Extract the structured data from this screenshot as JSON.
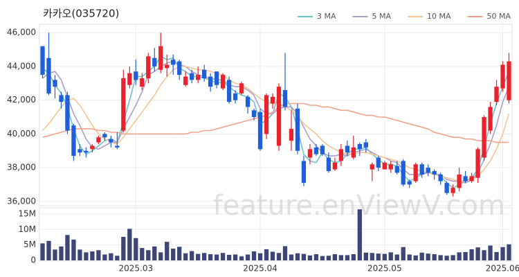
{
  "chart_data": [
    {
      "type": "candlestick",
      "title": "카카오(035720)",
      "watermark": "feature.enViewV.com",
      "categories": [
        null,
        null,
        null,
        null,
        null,
        null,
        null,
        null,
        null,
        null,
        null,
        null,
        null,
        null,
        null,
        "2025.03",
        null,
        null,
        null,
        null,
        null,
        null,
        null,
        null,
        null,
        null,
        null,
        null,
        null,
        null,
        null,
        null,
        null,
        null,
        null,
        "2025.04",
        null,
        null,
        null,
        null,
        null,
        null,
        null,
        null,
        null,
        null,
        null,
        null,
        null,
        null,
        null,
        null,
        null,
        null,
        null,
        "2025.05",
        null,
        null,
        null,
        null,
        null,
        null,
        null,
        null,
        null,
        null,
        null,
        null,
        null,
        null,
        null,
        null,
        null,
        null,
        "2025.06",
        null
      ],
      "open": [
        45200,
        44500,
        43200,
        42300,
        42300,
        40500,
        39100,
        39000,
        39100,
        39500,
        40000,
        39700,
        39300,
        40200,
        42900,
        43700,
        42800,
        43300,
        44500,
        43800,
        43900,
        44400,
        44300,
        42900,
        43600,
        43200,
        43800,
        43400,
        43700,
        42700,
        43200,
        42400,
        42400,
        42200,
        41400,
        41300,
        40000,
        41800,
        39300,
        42600,
        39600,
        41500,
        38400,
        38600,
        39200,
        39300,
        38600,
        37900,
        38400,
        39300,
        38600,
        39400,
        39500,
        37900,
        38600,
        37900,
        37900,
        38100,
        38400,
        37200,
        37200,
        38200,
        38000,
        37800,
        37600,
        37100,
        36500,
        36800,
        37500,
        37200,
        37400,
        38600,
        40200,
        41900,
        42700,
        42000
      ],
      "high": [
        45200,
        46000,
        43500,
        42500,
        42500,
        40600,
        39400,
        39200,
        39400,
        39900,
        40100,
        39900,
        40100,
        43800,
        44000,
        44400,
        43600,
        44800,
        45100,
        46000,
        44700,
        44700,
        44400,
        43700,
        43800,
        44000,
        44100,
        43600,
        43700,
        43600,
        43400,
        42600,
        43100,
        42300,
        41500,
        41500,
        42400,
        42400,
        43000,
        44800,
        41400,
        41800,
        38700,
        39400,
        39400,
        39400,
        38900,
        38600,
        39400,
        39600,
        39900,
        39500,
        39700,
        38300,
        38700,
        38400,
        38400,
        38400,
        38500,
        37300,
        38300,
        38300,
        38200,
        37900,
        37700,
        37200,
        37000,
        38000,
        37800,
        37700,
        39200,
        41100,
        41900,
        43200,
        44300,
        44800
      ],
      "low": [
        43300,
        42300,
        42100,
        41500,
        40000,
        38400,
        38700,
        38600,
        38900,
        39400,
        39600,
        39200,
        39100,
        40100,
        42700,
        42900,
        42600,
        43000,
        43700,
        43600,
        43400,
        43500,
        43200,
        42800,
        43000,
        43000,
        43100,
        42500,
        42700,
        42600,
        41800,
        41800,
        42300,
        41200,
        40800,
        39000,
        39700,
        41500,
        39000,
        41400,
        39000,
        38800,
        36900,
        38200,
        38700,
        38700,
        37700,
        37800,
        38100,
        38700,
        38500,
        38700,
        38900,
        37200,
        37800,
        37900,
        37700,
        37600,
        36900,
        36800,
        37100,
        37400,
        37500,
        37300,
        37000,
        36400,
        36300,
        36600,
        37100,
        37100,
        37100,
        38400,
        40000,
        41700,
        42500,
        41800
      ],
      "close": [
        43500,
        42400,
        42800,
        41900,
        40200,
        38700,
        38900,
        38900,
        39300,
        39800,
        39800,
        39500,
        39200,
        43300,
        43600,
        43200,
        43300,
        44600,
        44000,
        45200,
        44100,
        44100,
        43500,
        43400,
        43200,
        43500,
        43300,
        42800,
        42900,
        43500,
        41900,
        42000,
        43000,
        41600,
        41000,
        39100,
        42300,
        42200,
        42800,
        41600,
        40300,
        39000,
        37100,
        39100,
        38800,
        38800,
        37800,
        38300,
        39100,
        38900,
        39200,
        39100,
        39200,
        38200,
        38000,
        38300,
        38200,
        37700,
        37000,
        37000,
        38200,
        37600,
        37700,
        37600,
        37200,
        36500,
        36800,
        37600,
        37200,
        37500,
        39100,
        41000,
        41600,
        42800,
        44100,
        44300
      ],
      "up_color": "#e8232d",
      "down_color": "#1f5fd9",
      "series": [
        {
          "name": "3 MA",
          "color": "#6cc5cb",
          "values": [
            43900,
            43600,
            42900,
            42400,
            41600,
            40300,
            39300,
            38800,
            39000,
            39300,
            39600,
            39700,
            39500,
            40700,
            42000,
            43400,
            43400,
            43700,
            44000,
            44600,
            44400,
            44500,
            43900,
            43700,
            43400,
            43400,
            43300,
            43200,
            43000,
            43100,
            42800,
            42500,
            42300,
            42200,
            41900,
            40600,
            40800,
            41200,
            42400,
            42200,
            41600,
            40300,
            38800,
            38400,
            38300,
            38900,
            38500,
            38300,
            38400,
            38800,
            39100,
            39100,
            39200,
            38800,
            38500,
            38200,
            38200,
            38100,
            37600,
            37200,
            37400,
            37600,
            37800,
            37600,
            37500,
            37100,
            36800,
            37000,
            37200,
            37400,
            37900,
            39200,
            40600,
            41800,
            42800,
            43700
          ]
        },
        {
          "name": "5 MA",
          "color": "#ab9ecb",
          "values": [
            43300,
            43600,
            43700,
            43200,
            42200,
            41200,
            40500,
            39700,
            39200,
            39100,
            39300,
            39500,
            39500,
            40300,
            41000,
            41700,
            42500,
            43500,
            43700,
            44000,
            44200,
            44300,
            44100,
            44000,
            43700,
            43500,
            43400,
            43300,
            43200,
            43200,
            42900,
            42800,
            42800,
            42600,
            42300,
            41500,
            41200,
            41200,
            41500,
            41600,
            41600,
            41200,
            40400,
            39700,
            39300,
            38900,
            38700,
            38700,
            38800,
            38700,
            38900,
            39000,
            39100,
            38900,
            38700,
            38600,
            38400,
            38300,
            37900,
            37600,
            37600,
            37600,
            37700,
            37600,
            37600,
            37300,
            37200,
            37200,
            37100,
            37300,
            37700,
            38500,
            39400,
            40500,
            41900,
            42800
          ]
        },
        {
          "name": "10 MA",
          "color": "#f5c594",
          "values": [
            40200,
            40600,
            41100,
            41600,
            42000,
            42100,
            41700,
            41100,
            40500,
            40000,
            39700,
            39500,
            39400,
            39800,
            40300,
            40800,
            41300,
            41800,
            42300,
            42900,
            43400,
            43800,
            44000,
            44000,
            43900,
            43800,
            43800,
            43700,
            43600,
            43500,
            43200,
            43000,
            42900,
            42700,
            42400,
            42100,
            41900,
            41800,
            41800,
            41600,
            41400,
            41100,
            40600,
            40300,
            40000,
            39600,
            39300,
            39100,
            38900,
            38800,
            38800,
            38900,
            38900,
            38800,
            38700,
            38600,
            38500,
            38400,
            38200,
            38000,
            37900,
            37800,
            37700,
            37600,
            37500,
            37400,
            37300,
            37200,
            37200,
            37300,
            37500,
            37900,
            38400,
            39100,
            40000,
            41200
          ]
        },
        {
          "name": "50 MA",
          "color": "#f2a28c",
          "values": [
            39800,
            39900,
            40000,
            40100,
            40200,
            40300,
            40300,
            40300,
            40300,
            40200,
            40200,
            40100,
            40100,
            40000,
            40000,
            40000,
            40000,
            40000,
            40000,
            40000,
            40000,
            40000,
            40000,
            40000,
            40100,
            40100,
            40200,
            40200,
            40300,
            40400,
            40500,
            40600,
            40700,
            40800,
            40900,
            41000,
            41100,
            41300,
            41600,
            41800,
            41800,
            41800,
            41800,
            41700,
            41700,
            41600,
            41600,
            41500,
            41400,
            41400,
            41300,
            41200,
            41100,
            41100,
            41000,
            41000,
            40900,
            40800,
            40700,
            40600,
            40500,
            40400,
            40300,
            40100,
            40000,
            39900,
            39800,
            39800,
            39700,
            39700,
            39600,
            39600,
            39600,
            39500,
            39500,
            39500
          ]
        }
      ],
      "ylim": [
        35750,
        46500
      ],
      "yticks": [
        {
          "value": 36000,
          "label": "36,000"
        },
        {
          "value": 38000,
          "label": "38,000"
        },
        {
          "value": 40000,
          "label": "40,000"
        },
        {
          "value": 42000,
          "label": "42,000"
        },
        {
          "value": 44000,
          "label": "44,000"
        },
        {
          "value": 46000,
          "label": "46,000"
        }
      ],
      "grid": true,
      "legend": "top-right"
    },
    {
      "type": "bar",
      "color": "#3d4677",
      "values": [
        5.5,
        6.3,
        3.5,
        4.5,
        8.2,
        6.7,
        3.5,
        2.6,
        2.9,
        3.3,
        1.9,
        2.3,
        1.5,
        7.6,
        10.2,
        7.2,
        4.0,
        3.3,
        4.5,
        2.6,
        6.0,
        3.8,
        4.4,
        2.3,
        3.0,
        2.1,
        2.4,
        2.0,
        1.9,
        2.4,
        1.8,
        1.9,
        1.3,
        1.9,
        2.9,
        2.3,
        3.6,
        2.8,
        2.4,
        4.6,
        1.9,
        2.3,
        2.1,
        1.6,
        2.0,
        1.4,
        1.5,
        2.0,
        1.7,
        1.7,
        2.0,
        16.5,
        2.5,
        2.4,
        2.2,
        2.1,
        2.6,
        1.9,
        4.3,
        1.9,
        1.6,
        2.5,
        2.2,
        2.0,
        1.7,
        1.5,
        1.7,
        2.6,
        2.7,
        3.6,
        4.2,
        3.3,
        4.8,
        2.7,
        4.3,
        5.2
      ],
      "ylim": [
        0,
        17
      ],
      "yticks": [
        0,
        {
          "value": 5,
          "label": "5M"
        },
        {
          "value": 10,
          "label": "10M"
        },
        {
          "value": 15,
          "label": "15M"
        }
      ],
      "grid": true
    }
  ]
}
